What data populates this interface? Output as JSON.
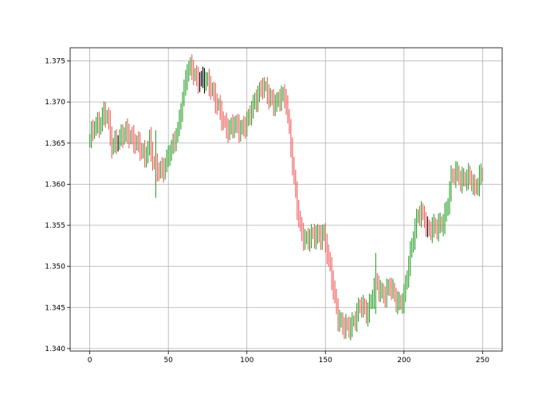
{
  "chart_data": {
    "type": "bar",
    "subtype": "ohlc-style vertical range bars",
    "title": "",
    "xlabel": "",
    "ylabel": "",
    "xlim": [
      -12.5,
      262.5
    ],
    "ylim": [
      1.3397,
      1.3766
    ],
    "xticks": [
      0,
      50,
      100,
      150,
      200,
      250
    ],
    "xtick_labels": [
      "0",
      "50",
      "100",
      "150",
      "200",
      "250"
    ],
    "yticks": [
      1.34,
      1.345,
      1.35,
      1.355,
      1.36,
      1.365,
      1.37,
      1.375
    ],
    "ytick_labels": [
      "1.340",
      "1.345",
      "1.350",
      "1.355",
      "1.360",
      "1.365",
      "1.370",
      "1.375"
    ],
    "grid": true,
    "legend": "none",
    "colors": {
      "up": "#2ca02c",
      "down": "#f05a5a",
      "flat": "#000000"
    },
    "anchors": [
      [
        0,
        1.3655
      ],
      [
        3,
        1.3668
      ],
      [
        6,
        1.3674
      ],
      [
        9,
        1.3688
      ],
      [
        11,
        1.3682
      ],
      [
        14,
        1.3645
      ],
      [
        17,
        1.3655
      ],
      [
        20,
        1.3658
      ],
      [
        23,
        1.366
      ],
      [
        26,
        1.366
      ],
      [
        29,
        1.3653
      ],
      [
        32,
        1.3642
      ],
      [
        35,
        1.3632
      ],
      [
        38,
        1.3655
      ],
      [
        41,
        1.362
      ],
      [
        44,
        1.3615
      ],
      [
        47,
        1.3622
      ],
      [
        50,
        1.3635
      ],
      [
        53,
        1.3645
      ],
      [
        56,
        1.3668
      ],
      [
        59,
        1.3705
      ],
      [
        62,
        1.3735
      ],
      [
        65,
        1.3742
      ],
      [
        68,
        1.373
      ],
      [
        71,
        1.3725
      ],
      [
        74,
        1.3725
      ],
      [
        77,
        1.3722
      ],
      [
        80,
        1.3702
      ],
      [
        83,
        1.3685
      ],
      [
        86,
        1.3673
      ],
      [
        89,
        1.3668
      ],
      [
        92,
        1.367
      ],
      [
        95,
        1.3668
      ],
      [
        98,
        1.3672
      ],
      [
        101,
        1.3678
      ],
      [
        104,
        1.3695
      ],
      [
        107,
        1.3712
      ],
      [
        110,
        1.372
      ],
      [
        113,
        1.3708
      ],
      [
        116,
        1.3703
      ],
      [
        119,
        1.37
      ],
      [
        122,
        1.3705
      ],
      [
        125,
        1.3702
      ],
      [
        128,
        1.365
      ],
      [
        130,
        1.3605
      ],
      [
        132,
        1.357
      ],
      [
        134,
        1.3545
      ],
      [
        137,
        1.3535
      ],
      [
        140,
        1.3535
      ],
      [
        143,
        1.3535
      ],
      [
        146,
        1.354
      ],
      [
        149,
        1.354
      ],
      [
        152,
        1.3505
      ],
      [
        155,
        1.3475
      ],
      [
        158,
        1.344
      ],
      [
        161,
        1.3425
      ],
      [
        164,
        1.3425
      ],
      [
        167,
        1.3432
      ],
      [
        170,
        1.3442
      ],
      [
        173,
        1.3452
      ],
      [
        176,
        1.3445
      ],
      [
        179,
        1.3458
      ],
      [
        182,
        1.3478
      ],
      [
        185,
        1.347
      ],
      [
        188,
        1.3468
      ],
      [
        191,
        1.3475
      ],
      [
        194,
        1.3462
      ],
      [
        197,
        1.3457
      ],
      [
        200,
        1.3462
      ],
      [
        203,
        1.35
      ],
      [
        206,
        1.354
      ],
      [
        209,
        1.3565
      ],
      [
        212,
        1.356
      ],
      [
        215,
        1.3545
      ],
      [
        218,
        1.355
      ],
      [
        221,
        1.3545
      ],
      [
        224,
        1.355
      ],
      [
        227,
        1.357
      ],
      [
        230,
        1.3605
      ],
      [
        233,
        1.3612
      ],
      [
        236,
        1.3608
      ],
      [
        239,
        1.3608
      ],
      [
        242,
        1.3605
      ],
      [
        245,
        1.3595
      ],
      [
        248,
        1.361
      ],
      [
        250,
        1.3612
      ]
    ]
  }
}
